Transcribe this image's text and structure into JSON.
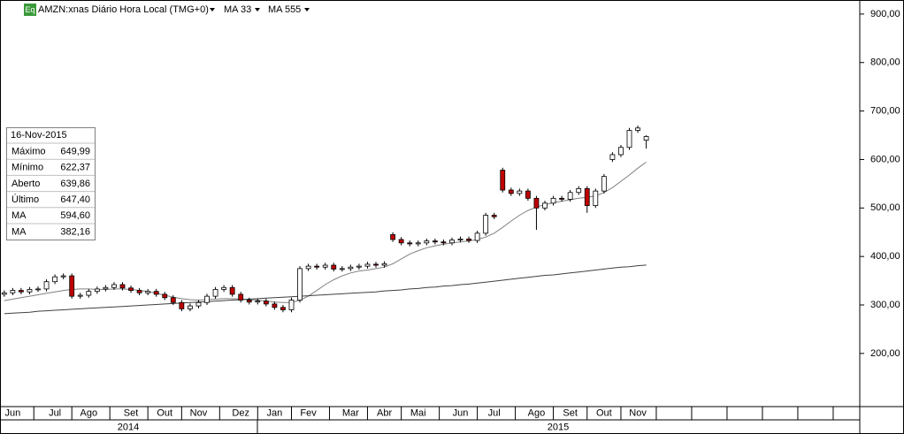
{
  "chart_data": {
    "type": "candlestick",
    "icon": "Eq",
    "title": "AMZN:xnas Diário Hora Local (TMG+0)",
    "categories": [
      null,
      "Jun",
      null,
      null,
      null,
      null,
      "Jul",
      null,
      null,
      null,
      "Ago",
      null,
      null,
      null,
      null,
      "Set",
      null,
      null,
      null,
      "Out",
      null,
      null,
      null,
      "Nov",
      null,
      null,
      null,
      null,
      "Dez",
      null,
      null,
      null,
      "Jan",
      null,
      null,
      null,
      "Fev",
      null,
      null,
      null,
      null,
      "Mar",
      null,
      null,
      null,
      "Abr",
      null,
      null,
      null,
      "Mai",
      null,
      null,
      null,
      null,
      "Jun",
      null,
      null,
      null,
      "Jul",
      null,
      null,
      null,
      null,
      "Ago",
      null,
      null,
      null,
      "Set",
      null,
      null,
      null,
      "Out",
      null,
      null,
      null,
      "Nov",
      null
    ],
    "years": [
      "2014",
      "2015"
    ],
    "open": [
      322,
      325,
      330,
      327,
      332,
      333,
      348,
      358,
      360,
      318,
      320,
      328,
      333,
      336,
      342,
      335,
      330,
      325,
      328,
      322,
      315,
      305,
      292,
      298,
      305,
      318,
      332,
      336,
      322,
      310,
      306,
      308,
      302,
      295,
      290,
      310,
      375,
      380,
      378,
      382,
      374,
      375,
      378,
      380,
      384,
      382,
      445,
      435,
      428,
      426,
      428,
      432,
      430,
      428,
      434,
      436,
      433,
      448,
      485,
      578,
      537,
      530,
      535,
      520,
      500,
      510,
      520,
      518,
      532,
      540,
      505,
      535,
      600,
      610,
      625,
      660,
      639.86
    ],
    "high": [
      330,
      335,
      335,
      337,
      338,
      353,
      363,
      365,
      365,
      325,
      333,
      338,
      341,
      347,
      347,
      340,
      335,
      333,
      333,
      327,
      320,
      310,
      303,
      310,
      323,
      337,
      341,
      341,
      327,
      315,
      313,
      313,
      307,
      300,
      315,
      380,
      385,
      385,
      387,
      387,
      380,
      383,
      385,
      389,
      389,
      390,
      450,
      440,
      433,
      433,
      437,
      437,
      435,
      439,
      441,
      441,
      453,
      490,
      490,
      583,
      542,
      540,
      540,
      525,
      515,
      525,
      525,
      537,
      545,
      545,
      540,
      570,
      615,
      630,
      665,
      670,
      649.99
    ],
    "low": [
      317,
      320,
      322,
      322,
      327,
      328,
      343,
      353,
      313,
      313,
      315,
      323,
      328,
      331,
      330,
      325,
      320,
      320,
      317,
      310,
      300,
      287,
      287,
      293,
      300,
      313,
      327,
      317,
      305,
      301,
      301,
      297,
      290,
      285,
      285,
      305,
      370,
      373,
      373,
      369,
      369,
      370,
      373,
      375,
      377,
      377,
      430,
      423,
      421,
      421,
      423,
      425,
      423,
      423,
      429,
      428,
      428,
      443,
      477,
      532,
      525,
      525,
      515,
      455,
      495,
      505,
      513,
      513,
      527,
      490,
      500,
      530,
      595,
      605,
      620,
      655,
      622.37
    ],
    "close": [
      325,
      330,
      327,
      332,
      333,
      348,
      358,
      360,
      318,
      320,
      328,
      333,
      336,
      342,
      335,
      330,
      325,
      328,
      322,
      315,
      305,
      292,
      298,
      305,
      318,
      332,
      336,
      322,
      310,
      306,
      308,
      302,
      295,
      290,
      310,
      375,
      380,
      378,
      382,
      374,
      375,
      378,
      380,
      384,
      382,
      385,
      435,
      428,
      426,
      428,
      432,
      430,
      428,
      434,
      436,
      433,
      448,
      485,
      482,
      537,
      530,
      535,
      520,
      500,
      510,
      520,
      518,
      532,
      540,
      505,
      535,
      565,
      610,
      625,
      660,
      665,
      647.4
    ],
    "colors": {
      "up": "#ffffff",
      "down": "#c00000",
      "wick": "#000000"
    },
    "series": [
      {
        "name": "MA 33",
        "color": "#808080",
        "values": [
          309,
          312,
          315,
          318,
          321,
          324,
          327,
          330,
          332,
          333,
          333,
          332,
          332,
          333,
          333,
          332,
          330,
          328,
          324,
          320,
          316,
          313,
          311,
          310,
          311,
          312,
          313,
          313,
          312,
          311,
          310,
          308,
          306,
          305,
          305,
          310,
          318,
          330,
          342,
          352,
          360,
          366,
          370,
          372,
          375,
          378,
          385,
          395,
          405,
          412,
          418,
          422,
          425,
          428,
          430,
          432,
          435,
          440,
          448,
          460,
          473,
          485,
          495,
          502,
          507,
          511,
          514,
          517,
          520,
          522,
          525,
          532,
          542,
          555,
          568,
          582,
          594.6
        ]
      },
      {
        "name": "MA 555",
        "color": "#404040",
        "values": [
          282,
          283,
          284,
          285,
          287,
          288,
          289,
          290,
          291,
          292,
          293,
          294,
          295,
          296,
          297,
          298,
          299,
          300,
          301,
          302,
          303,
          304,
          305,
          306,
          307,
          308,
          309,
          310,
          311,
          312,
          313,
          314,
          315,
          316,
          317,
          318,
          319,
          320,
          321,
          322,
          323,
          324,
          325,
          326,
          327,
          329,
          330,
          331,
          333,
          334,
          336,
          337,
          339,
          340,
          342,
          343,
          345,
          347,
          349,
          351,
          353,
          355,
          357,
          359,
          361,
          362,
          364,
          366,
          368,
          370,
          372,
          374,
          376,
          378,
          379,
          381,
          382.16
        ]
      }
    ],
    "ylim": [
      94,
      929
    ],
    "yticks": [
      {
        "value": 200,
        "label": "200,00"
      },
      {
        "value": 300,
        "label": "300,00"
      },
      {
        "value": 400,
        "label": "400,00"
      },
      {
        "value": 500,
        "label": "500,00"
      },
      {
        "value": 600,
        "label": "600,00"
      },
      {
        "value": 700,
        "label": "700,00"
      },
      {
        "value": 800,
        "label": "800,00"
      },
      {
        "value": 900,
        "label": "900,00"
      }
    ],
    "info_box": {
      "date": "16-Nov-2015",
      "rows": [
        {
          "label": "Máximo",
          "value": "649,99"
        },
        {
          "label": "Mínimo",
          "value": "622,37"
        },
        {
          "label": "Aberto",
          "value": "639,86"
        },
        {
          "label": "Último",
          "value": "647,40"
        },
        {
          "label": "MA",
          "value": "594,60"
        },
        {
          "label": "MA",
          "value": "382,16"
        }
      ]
    }
  }
}
